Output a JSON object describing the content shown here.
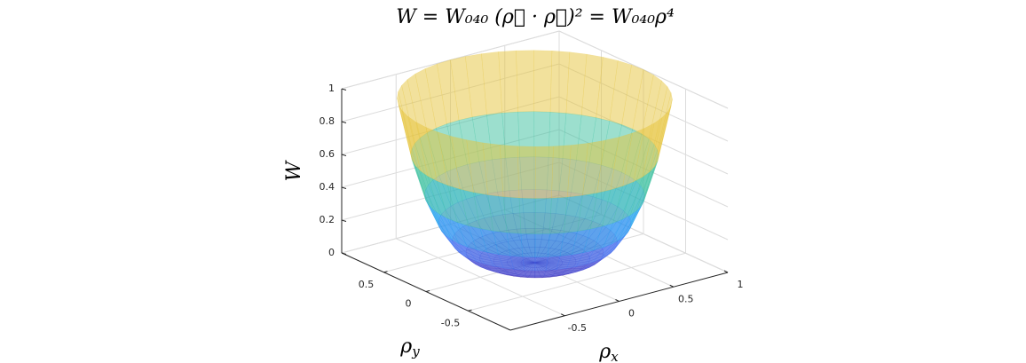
{
  "chart_data": {
    "type": "surface",
    "title": "W = W₀₄₀ (ρ⃗ · ρ⃗)² = W₀₄₀ρ⁴",
    "xlabel": "ρx",
    "ylabel": "ρy",
    "zlabel": "W",
    "rho": [
      0,
      0.1,
      0.2,
      0.3,
      0.4,
      0.5,
      0.6,
      0.7,
      0.8,
      0.9,
      1
    ],
    "values": [
      0,
      0.0001,
      0.0016,
      0.0081,
      0.0256,
      0.0625,
      0.1296,
      0.2401,
      0.4096,
      0.6561,
      1
    ],
    "xlim": [
      -1,
      1
    ],
    "ylim": [
      -1,
      1
    ],
    "zlim": [
      0,
      1
    ],
    "xticks": [
      -0.5,
      0,
      0.5,
      1
    ],
    "yticks": [
      -0.5,
      0,
      0.5
    ],
    "zticks": [
      0,
      0.2,
      0.4,
      0.6,
      0.8,
      1
    ],
    "grid": true,
    "alpha": 0.5,
    "colormap": [
      "#3e26a8",
      "#4764f5",
      "#1f96f7",
      "#14b3d2",
      "#48c48b",
      "#a9c23a",
      "#f5c53a",
      "#f9fb0e"
    ]
  }
}
